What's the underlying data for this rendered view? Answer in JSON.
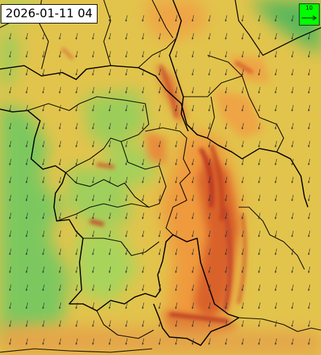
{
  "map": {
    "timestamp": "2026-01-11 04",
    "legend": {
      "reference_value": "10",
      "fill_color": "#00ff00"
    },
    "palette": {
      "green": "#6fc85a",
      "light_green": "#a8d45a",
      "yellow": "#e8d24a",
      "orange": "#f0a040",
      "red_orange": "#d85a2a",
      "dark_red": "#b83020",
      "border": "#000000",
      "arrow": "#333333"
    },
    "wind_arrows": {
      "direction": "toward-south-south-west",
      "icon": "arrow-icon"
    }
  }
}
